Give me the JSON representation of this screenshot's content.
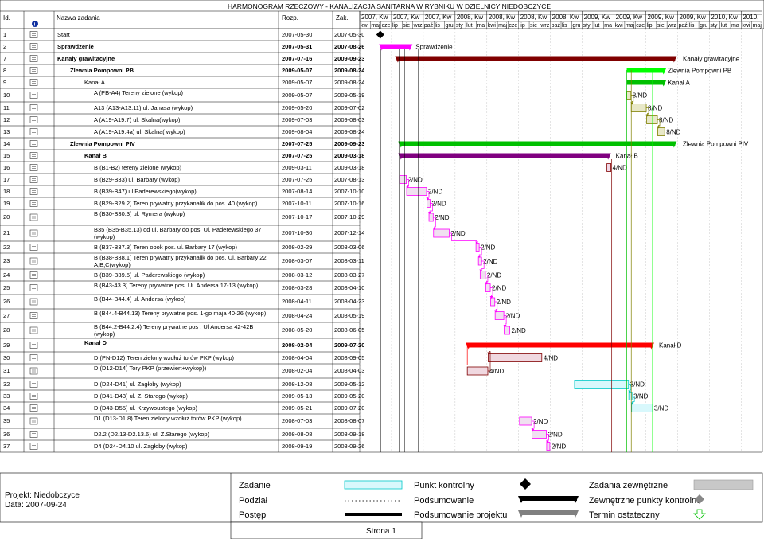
{
  "title": "HARMONOGRAM RZECZOWY - KANALIZACJA SANITARNA W RYBNIKU W DZIELNICY NIEDOBCZYCE",
  "columns": {
    "id": "Id.",
    "name": "Nazwa zadania",
    "start": "Rozp.",
    "end": "Zak."
  },
  "quarters": [
    "2007, Kw",
    "2007, Kw",
    "2007, Kw",
    "2008, Kw",
    "2008, Kw",
    "2008, Kw",
    "2008, Kw",
    "2009, Kw",
    "2009, Kw",
    "2009, Kw",
    "2009, Kw",
    "2010, Kw",
    "2010,"
  ],
  "months": [
    "kwi",
    "maj",
    "cze",
    "lip",
    "sie",
    "wrz",
    "paź",
    "lis",
    "gru",
    "sty",
    "lut",
    "ma",
    "kwi",
    "maj",
    "cze",
    "lip",
    "sie",
    "wrz",
    "paź",
    "lis",
    "gru",
    "sty",
    "lut",
    "ma",
    "kwi",
    "maj",
    "cze",
    "lip",
    "sie",
    "wrz",
    "paź",
    "lis",
    "gru",
    "sty",
    "lut",
    "ma",
    "kwi",
    "maj"
  ],
  "rows": [
    {
      "id": "1",
      "name": "Start",
      "start": "2007-05-30",
      "end": "2007-05-30",
      "bold": false,
      "indent": 0
    },
    {
      "id": "2",
      "name": "Sprawdzenie",
      "start": "2007-05-31",
      "end": "2007-08-26",
      "bold": true,
      "indent": 0
    },
    {
      "id": "7",
      "name": "Kanały grawitacyjne",
      "start": "2007-07-16",
      "end": "2009-09-23",
      "bold": true,
      "indent": 0
    },
    {
      "id": "8",
      "name": "Zlewnia Pompowni PB",
      "start": "2009-05-07",
      "end": "2009-08-24",
      "bold": true,
      "indent": 1
    },
    {
      "id": "9",
      "name": "Kanał A",
      "start": "2009-05-07",
      "end": "2009-08-24",
      "bold": false,
      "indent": 2
    },
    {
      "id": "10",
      "name": "A (PB-A4) Tereny zielone (wykop)",
      "start": "2009-05-07",
      "end": "2009-05-19",
      "bold": false,
      "indent": 3
    },
    {
      "id": "11",
      "name": "A13 (A13-A13.11) ul. Janasa (wykop)",
      "start": "2009-05-20",
      "end": "2009-07-02",
      "bold": false,
      "indent": 3
    },
    {
      "id": "12",
      "name": "A  (A19-A19.7) ul. Skalna(wykop)",
      "start": "2009-07-03",
      "end": "2009-08-03",
      "bold": false,
      "indent": 3
    },
    {
      "id": "13",
      "name": "A (A19-A19.4a) ul. Skalna( wykop)",
      "start": "2009-08-04",
      "end": "2009-08-24",
      "bold": false,
      "indent": 3
    },
    {
      "id": "14",
      "name": "Zlewnia Pompowni PIV",
      "start": "2007-07-25",
      "end": "2009-09-23",
      "bold": true,
      "indent": 1
    },
    {
      "id": "15",
      "name": "Kanał B",
      "start": "2007-07-25",
      "end": "2009-03-18",
      "bold": true,
      "indent": 2
    },
    {
      "id": "16",
      "name": "B (B1-B2) tereny zielone (wykop)",
      "start": "2009-03-11",
      "end": "2009-03-18",
      "bold": false,
      "indent": 3
    },
    {
      "id": "17",
      "name": "B (B29-B33) ul. Barbary (wykop)",
      "start": "2007-07-25",
      "end": "2007-08-13",
      "bold": false,
      "indent": 3
    },
    {
      "id": "18",
      "name": "B (B39-B47) ul Paderewskiego(wykop)",
      "start": "2007-08-14",
      "end": "2007-10-10",
      "bold": false,
      "indent": 3
    },
    {
      "id": "19",
      "name": "B (B29-B29.2) Teren prywatny przykanalik do  pos. 40 (wykop)",
      "start": "2007-10-11",
      "end": "2007-10-16",
      "bold": false,
      "indent": 3
    },
    {
      "id": "20",
      "name": " B (B30-B30.3) ul. Rymera (wykop)",
      "start": "2007-10-17",
      "end": "2007-10-29",
      "bold": false,
      "indent": 3
    },
    {
      "id": "21",
      "name": "B35 (B35-B35.13) od ul. Barbary do pos. Ul. Paderewskiego 37 (wykop)",
      "start": "2007-10-30",
      "end": "2007-12-14",
      "bold": false,
      "indent": 3
    },
    {
      "id": "22",
      "name": "B (B37-B37.3) Teren obok pos. ul. Barbary 17 (wykop)",
      "start": "2008-02-29",
      "end": "2008-03-06",
      "bold": false,
      "indent": 3
    },
    {
      "id": "23",
      "name": "B (B38-B38.1) Teren prywatny przykanalik do  pos. Ul. Barbary 22 A,B,C(wykop)",
      "start": "2008-03-07",
      "end": "2008-03-11",
      "bold": false,
      "indent": 3
    },
    {
      "id": "24",
      "name": "B (B39-B39.5) ul. Paderewskiego (wykop)",
      "start": "2008-03-12",
      "end": "2008-03-27",
      "bold": false,
      "indent": 3
    },
    {
      "id": "25",
      "name": "B (B43-43.3) Tereny prywatne pos. Ui. Andersa 17-13 (wykop)",
      "start": "2008-03-28",
      "end": "2008-04-10",
      "bold": false,
      "indent": 3
    },
    {
      "id": "26",
      "name": " B (B44-B44.4) ul. Andersa (wykop)",
      "start": "2008-04-11",
      "end": "2008-04-23",
      "bold": false,
      "indent": 3
    },
    {
      "id": "27",
      "name": "B (B44.4-B44.13) Tereny prywatne pos. 1-go maja 40-26 (wykop)",
      "start": "2008-04-24",
      "end": "2008-05-19",
      "bold": false,
      "indent": 3
    },
    {
      "id": "28",
      "name": "B (B44.2-B44.2.4) Tereny prywatne pos . Ul Andersa 42-42B (wykop)",
      "start": "2008-05-20",
      "end": "2008-06-05",
      "bold": false,
      "indent": 3
    },
    {
      "id": "29",
      "name": "Kanał D",
      "start": "2008-02-04",
      "end": "2009-07-20",
      "bold": true,
      "indent": 2
    },
    {
      "id": "30",
      "name": "D (PN-D12) Teren zielony wzdłuż torów PKP (wykop)",
      "start": "2008-04-04",
      "end": "2008-09-05",
      "bold": false,
      "indent": 3
    },
    {
      "id": "31",
      "name": "D (D12-D14) Tory PKP (przewiert+wykop))",
      "start": "2008-02-04",
      "end": "2008-04-03",
      "bold": false,
      "indent": 3
    },
    {
      "id": "32",
      "name": "D (D24-D41) ul. Zagłoby (wykop)",
      "start": "2008-12-08",
      "end": "2009-05-12",
      "bold": false,
      "indent": 3
    },
    {
      "id": "33",
      "name": "D (D41-D43) ul. Z. Starego (wykop)",
      "start": "2009-05-13",
      "end": "2009-05-20",
      "bold": false,
      "indent": 3
    },
    {
      "id": "34",
      "name": "D (D43-D55) ul. Krzywoustego (wykop)",
      "start": "2009-05-21",
      "end": "2009-07-20",
      "bold": false,
      "indent": 3
    },
    {
      "id": "35",
      "name": "D1 (D13-D1.8) Teren zielony wzdłuż torów PKP (wykop)",
      "start": "2008-07-03",
      "end": "2008-08-07",
      "bold": false,
      "indent": 3
    },
    {
      "id": "36",
      "name": "D2.2 (D2.13-D2.13.6) ul. Z.Starego (wykop)",
      "start": "2008-08-08",
      "end": "2008-09-18",
      "bold": false,
      "indent": 3
    },
    {
      "id": "37",
      "name": "D4 (D24-D4.10 ul. Zagłoby (wykop)",
      "start": "2008-09-19",
      "end": "2008-09-26",
      "bold": false,
      "indent": 3
    }
  ],
  "bar_labels": {
    "2": "Sprawdzenie",
    "7": "Kanały grawitacyjne",
    "8": "Zlewnia Pompowni PB",
    "9": "Kanał A",
    "10": "8/ND",
    "11": "8/ND",
    "12": "8/ND",
    "13": "8/ND",
    "14": "Zlewnia Pompowni PIV",
    "15": "Kanał B",
    "16": "4/ND",
    "17": "2/ND",
    "18": "2/ND",
    "19": "2/ND",
    "20": "2/ND",
    "21": "2/ND",
    "22": "2/ND",
    "23": "2/ND",
    "24": "2/ND",
    "25": "2/ND",
    "26": "2/ND",
    "27": "2/ND",
    "28": "2/ND",
    "29": "Kanał D",
    "30": "4/ND",
    "31": "4/ND",
    "32": "3/ND",
    "33": "3/ND",
    "34": "3/ND",
    "35": "2/ND",
    "36": "2/ND",
    "37": "2/ND"
  },
  "footer": {
    "project": "Projekt: Niedobczyce",
    "date": "Data: 2007-09-24",
    "page": "Strona 1",
    "legend": {
      "task": "Zadanie",
      "split": "Podział",
      "progress": "Postęp",
      "milestone": "Punkt kontrolny",
      "summary": "Podsumowanie",
      "project_summary": "Podsumowanie projektu",
      "external_tasks": "Zadania zewnętrzne",
      "external_milestone": "Zewnętrzne punkty kontrolne",
      "deadline": "Termin ostateczny"
    }
  },
  "colors": {
    "grid": "#000000",
    "pink": "#ff00ff",
    "darkred": "#800000",
    "green": "#00c000",
    "lime": "#00ff00",
    "olive": "#808000",
    "purple": "#800080",
    "red": "#ff0000",
    "cyan": "#00c8c8",
    "lightgray": "#c8c8c8"
  }
}
